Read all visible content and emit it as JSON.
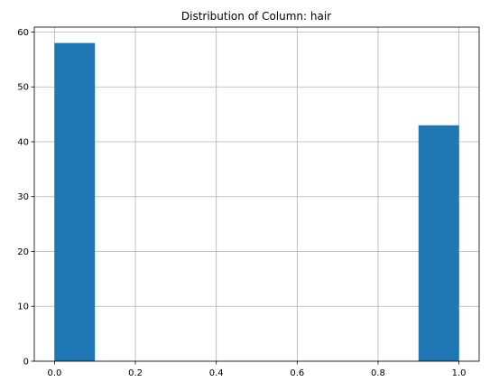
{
  "chart_data": {
    "type": "bar",
    "title": "Distribution of Column: hair",
    "xlabel": "",
    "ylabel": "",
    "xlim": [
      -0.05,
      1.05
    ],
    "ylim": [
      0,
      60.9
    ],
    "x_ticks": [
      0.0,
      0.2,
      0.4,
      0.6,
      0.8,
      1.0
    ],
    "x_tick_labels": [
      "0.0",
      "0.2",
      "0.4",
      "0.6",
      "0.8",
      "1.0"
    ],
    "y_ticks": [
      0,
      10,
      20,
      30,
      40,
      50,
      60
    ],
    "y_tick_labels": [
      "0",
      "10",
      "20",
      "30",
      "40",
      "50",
      "60"
    ],
    "grid": true,
    "bars": [
      {
        "x0": 0.0,
        "x1": 0.1,
        "value": 58
      },
      {
        "x0": 0.9,
        "x1": 1.0,
        "value": 43
      }
    ],
    "colors": {
      "bar": "#1f77b4",
      "grid": "#b0b0b0",
      "axis": "#000000"
    }
  }
}
